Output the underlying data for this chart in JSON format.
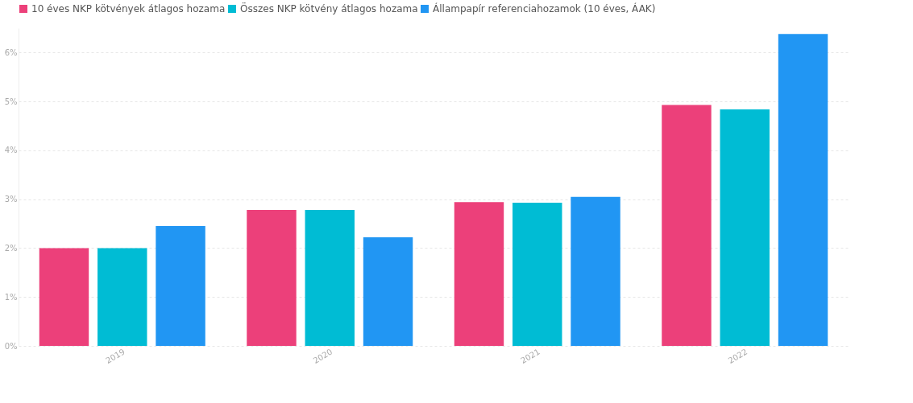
{
  "chart_data": {
    "type": "bar",
    "categories": [
      "2019",
      "2020",
      "2021",
      "2022"
    ],
    "series": [
      {
        "name": "10 éves NKP kötvények átlagos hozama",
        "color": "#ec407a",
        "values": [
          2.0,
          2.78,
          2.94,
          4.93
        ]
      },
      {
        "name": "Összes NKP kötvény átlagos hozama",
        "color": "#00bcd4",
        "values": [
          2.0,
          2.78,
          2.93,
          4.84
        ]
      },
      {
        "name": "Állampapír referenciahozamok (10 éves, ÁAK)",
        "color": "#2196f3",
        "values": [
          2.45,
          2.22,
          3.05,
          6.38
        ]
      }
    ],
    "ylim": [
      0,
      6.5
    ],
    "yticks": [
      {
        "value": 0,
        "label": "0%"
      },
      {
        "value": 1,
        "label": "1%"
      },
      {
        "value": 2,
        "label": "2%"
      },
      {
        "value": 3,
        "label": "3%"
      },
      {
        "value": 4,
        "label": "4%"
      },
      {
        "value": 5,
        "label": "5%"
      },
      {
        "value": 6,
        "label": "6%"
      }
    ],
    "grid": "y",
    "legend": "top"
  }
}
